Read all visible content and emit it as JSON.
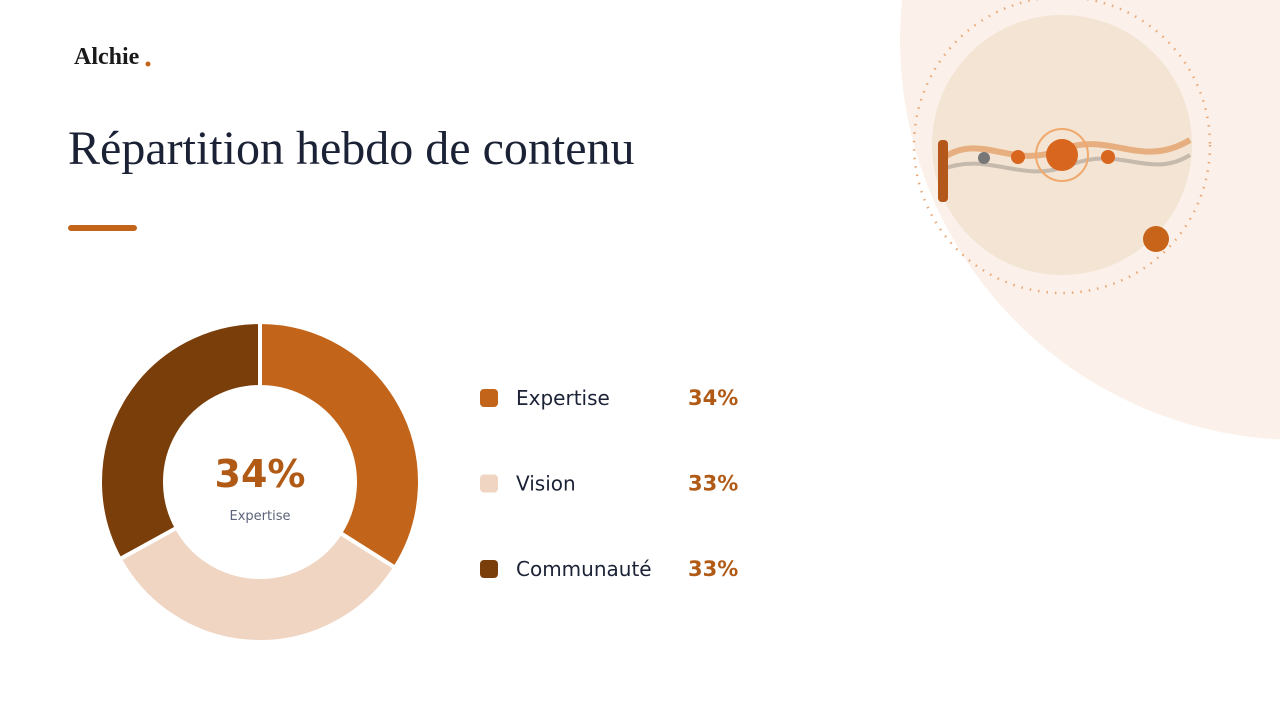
{
  "brand": "Alchie",
  "chart_data": {
    "type": "donut",
    "title": "Répartition hebdo de contenu",
    "categories": [
      "Expertise",
      "Vision",
      "Communauté"
    ],
    "values": [
      34,
      33,
      33
    ],
    "value_labels": [
      "34%",
      "33%",
      "33%"
    ],
    "colors": [
      "#c2651a",
      "#efd5c2",
      "#7a3e0a"
    ]
  }
}
